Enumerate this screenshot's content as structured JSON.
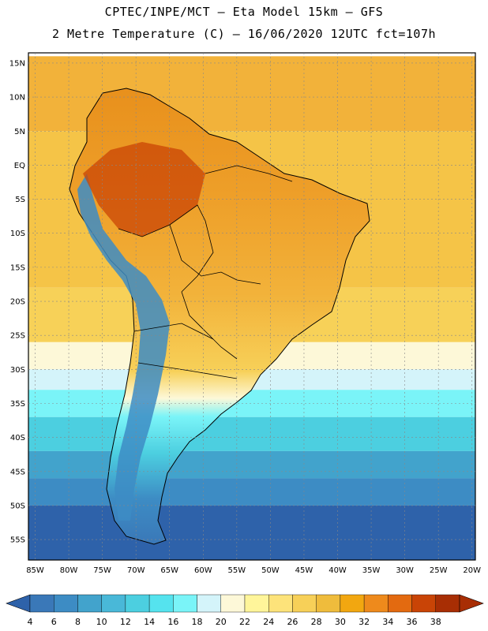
{
  "header": {
    "line1": "CPTEC/INPE/MCT –  Eta Model 15km – GFS",
    "line2": "2 Metre Temperature (C) – 16/06/2020 12UTC fct=107h"
  },
  "axes": {
    "lat_labels": [
      "15N",
      "10N",
      "5N",
      "EQ",
      "5S",
      "10S",
      "15S",
      "20S",
      "25S",
      "30S",
      "35S",
      "40S",
      "45S",
      "50S",
      "55S"
    ],
    "lon_labels": [
      "85W",
      "80W",
      "75W",
      "70W",
      "65W",
      "60W",
      "55W",
      "50W",
      "45W",
      "40W",
      "35W",
      "30W",
      "25W",
      "20W"
    ]
  },
  "colorbar": {
    "labels": [
      "4",
      "6",
      "8",
      "10",
      "12",
      "14",
      "16",
      "18",
      "20",
      "22",
      "24",
      "26",
      "28",
      "30",
      "32",
      "34",
      "36",
      "38"
    ],
    "colors": [
      "#3a78b8",
      "#3d8cc4",
      "#42a3cc",
      "#49b8d8",
      "#4ccfe0",
      "#55e3ee",
      "#7af4f8",
      "#d4f4fa",
      "#fdf8d8",
      "#fff59a",
      "#fde37a",
      "#f7d058",
      "#efbc3c",
      "#f2a710",
      "#ee8a1c",
      "#e36a10",
      "#c94406",
      "#a82e04"
    ],
    "under_color": "#2e62aa",
    "over_color": "#a82e04"
  },
  "map_fields": {
    "continent": "South America",
    "ocean_bands": [
      {
        "lat_top": 16,
        "color": "#f2b23a"
      },
      {
        "lat_top": 5,
        "color": "#f5c447"
      },
      {
        "lat_top": -18,
        "color": "#f7d158"
      },
      {
        "lat_top": -26,
        "color": "#fdf8d8"
      },
      {
        "lat_top": -30,
        "color": "#d4f4fa"
      },
      {
        "lat_top": -33,
        "color": "#7af4f8"
      },
      {
        "lat_top": -37,
        "color": "#4ccfe0"
      },
      {
        "lat_top": -42,
        "color": "#42a3cc"
      },
      {
        "lat_top": -46,
        "color": "#3d8cc4"
      },
      {
        "lat_top": -50,
        "color": "#2e62aa"
      }
    ]
  }
}
